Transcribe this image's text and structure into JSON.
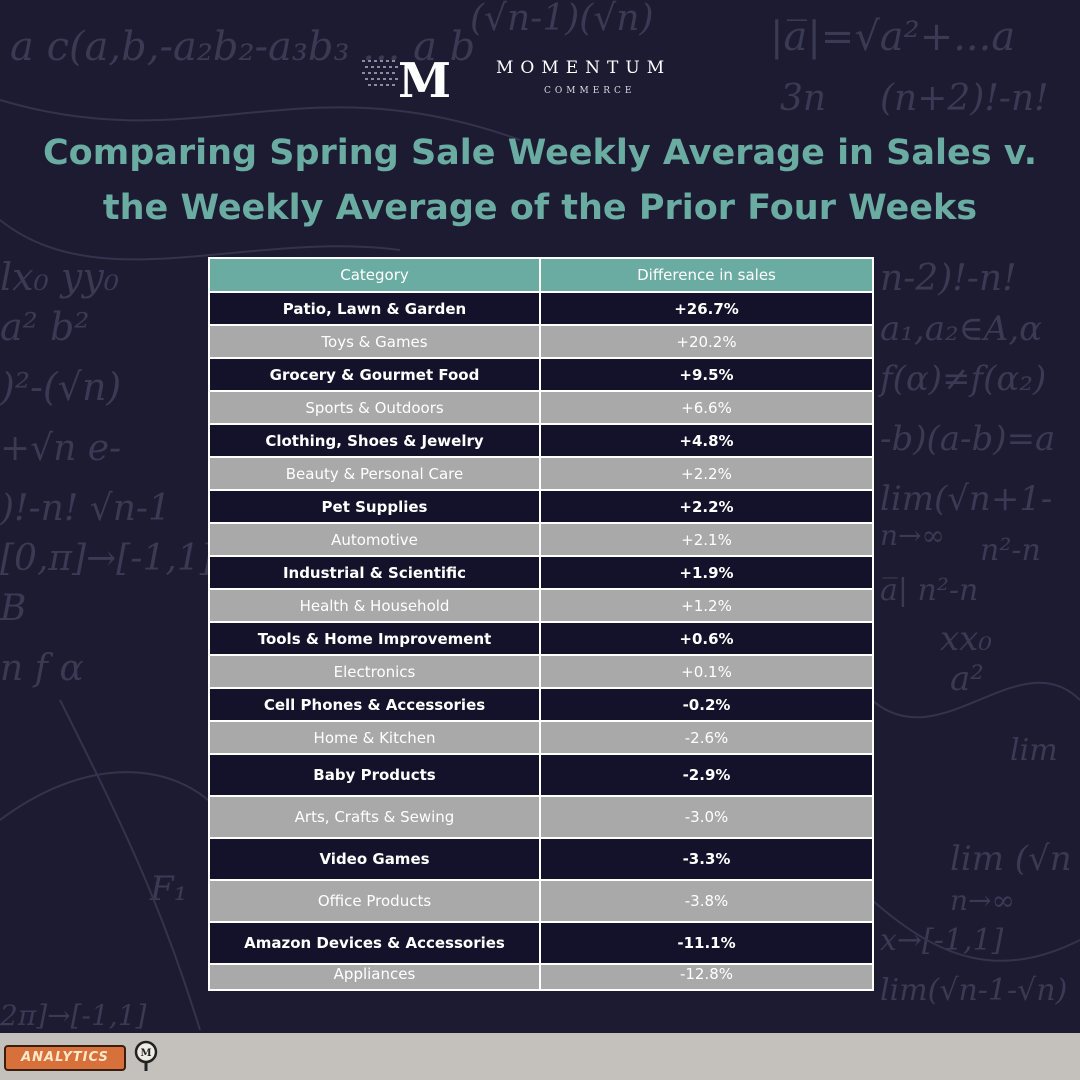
{
  "brand": {
    "name": "MOMENTUM",
    "sub": "COMMERCE",
    "badge_label": "ANALYTICS",
    "logo_letter": "M",
    "accent_color": "#6aaba2",
    "background_color": "#1c1b32"
  },
  "title": "Comparing Spring Sale Weekly Average in Sales v. the Weekly Average of the Prior Four Weeks",
  "chart_data": {
    "type": "table",
    "title": "Comparing Spring Sale Weekly Average in Sales v. the Weekly Average of the Prior Four Weeks",
    "columns": [
      "Category",
      "Difference in sales"
    ],
    "rows": [
      [
        "Patio, Lawn & Garden",
        "+26.7%"
      ],
      [
        "Toys & Games",
        "+20.2%"
      ],
      [
        "Grocery & Gourmet Food",
        "+9.5%"
      ],
      [
        "Sports & Outdoors",
        "+6.6%"
      ],
      [
        "Clothing, Shoes & Jewelry",
        "+4.8%"
      ],
      [
        "Beauty & Personal Care",
        "+2.2%"
      ],
      [
        "Pet Supplies",
        "+2.2%"
      ],
      [
        "Automotive",
        "+2.1%"
      ],
      [
        "Industrial & Scientific",
        "+1.9%"
      ],
      [
        "Health & Household",
        "+1.2%"
      ],
      [
        "Tools & Home Improvement",
        "+0.6%"
      ],
      [
        "Electronics",
        "+0.1%"
      ],
      [
        "Cell Phones & Accessories",
        "-0.2%"
      ],
      [
        "Home & Kitchen",
        "-2.6%"
      ],
      [
        "Baby Products",
        "-2.9%"
      ],
      [
        "Arts, Crafts & Sewing",
        "-3.0%"
      ],
      [
        "Video Games",
        "-3.3%"
      ],
      [
        "Office Products",
        "-3.8%"
      ],
      [
        "Amazon Devices & Accessories",
        "-11.1%"
      ],
      [
        "Appliances",
        "-12.8%"
      ]
    ],
    "values": [
      26.7,
      20.2,
      9.5,
      6.6,
      4.8,
      2.2,
      2.2,
      2.1,
      1.9,
      1.2,
      0.6,
      0.1,
      -0.2,
      -2.6,
      -2.9,
      -3.0,
      -3.3,
      -3.8,
      -11.1,
      -12.8
    ],
    "header_color": "#6aaba2",
    "row_colors": [
      "#14122a",
      "#a9a9a9"
    ]
  }
}
